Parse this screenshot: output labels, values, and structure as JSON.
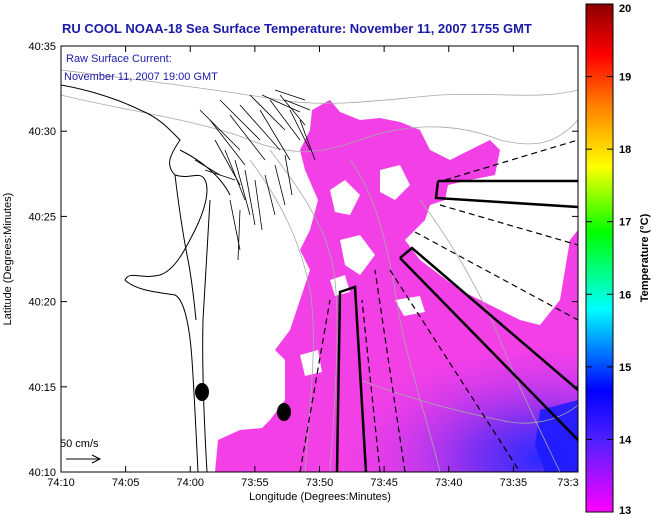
{
  "title": "RU COOL  NOAA-18  Sea Surface Temperature:  November 11, 2007 1755 GMT",
  "current_note": {
    "line1": "Raw Surface Current:",
    "line2": "November 11, 2007 19:00 GMT"
  },
  "scale_arrow_label": "50 cm/s",
  "axes": {
    "xlabel": "Longitude (Degrees:Minutes)",
    "ylabel": "Latitude (Degrees:Minutes)",
    "xticks": [
      "74:10",
      "74:05",
      "74:00",
      "73:55",
      "73:50",
      "73:45",
      "73:40",
      "73:35",
      "73:3"
    ],
    "yticks": [
      "40:35",
      "40:30",
      "40:25",
      "40:20",
      "40:15",
      "40:10"
    ]
  },
  "colorbar": {
    "label": "Temperature (°C)",
    "ticks": [
      "20",
      "19",
      "18",
      "17",
      "16",
      "15",
      "14",
      "13"
    ],
    "range": [
      13,
      20
    ],
    "colors": [
      "#ff00ff",
      "#0000ff",
      "#00ffff",
      "#00ff00",
      "#ffff00",
      "#ff8000",
      "#ff0000",
      "#8b0000"
    ]
  },
  "colors": {
    "sst_main": "#f23fe6",
    "sst_cool": "#9030f0",
    "title_text": "#1a1aa8"
  }
}
